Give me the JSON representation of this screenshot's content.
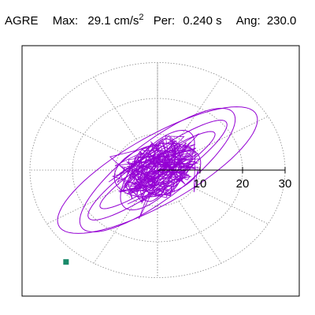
{
  "header": {
    "station": "AGRE",
    "max_label": "Max:",
    "max_value": "29.1 cm/s",
    "max_exp": "2",
    "per_label": "Per:",
    "per_value": "0.240 s",
    "ang_label": "Ang:",
    "ang_value": "230.0"
  },
  "colors": {
    "trace": "#9400d3",
    "grid": "#888888",
    "end_marker": "#1a8a6a",
    "frame": "#000000"
  },
  "chart_data": {
    "type": "polar",
    "radial_ticks": [
      "10",
      "20",
      "30"
    ],
    "radial_tick_values": [
      10,
      20,
      30
    ],
    "r_max": 30,
    "grid": true,
    "peak_value": 29.1,
    "peak_angle_deg": 230.0,
    "end_marker_angle_deg": 230.0,
    "ellipses": [
      {
        "a": 21.0,
        "b": 4.5,
        "tilt": 40
      },
      {
        "a": 17.0,
        "b": 3.2,
        "tilt": 38
      },
      {
        "a": 28.0,
        "b": 9.0,
        "tilt": 35
      },
      {
        "a": 24.0,
        "b": 7.5,
        "tilt": 43
      },
      {
        "a": 13.0,
        "b": 5.5,
        "tilt": 55
      },
      {
        "a": 10.5,
        "b": 7.0,
        "tilt": 20
      },
      {
        "a": 9.0,
        "b": 3.5,
        "tilt": 75
      },
      {
        "a": 7.0,
        "b": 5.5,
        "tilt": 100
      },
      {
        "a": 6.0,
        "b": 2.5,
        "tilt": 135
      }
    ],
    "trace_segments": 220,
    "seed": 7
  }
}
